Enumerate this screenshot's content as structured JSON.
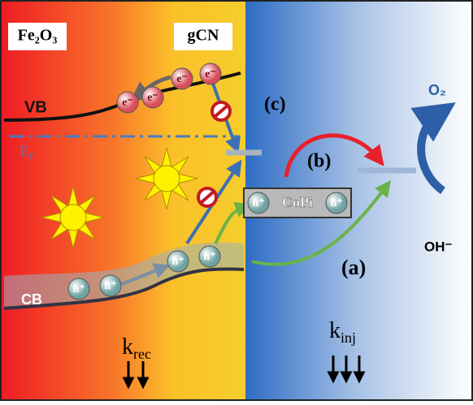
{
  "labels": {
    "left_material": "Fe₂O₃",
    "right_material": "gCN",
    "vb": "VB",
    "cb": "CB",
    "fermi": {
      "main": "E",
      "sub": "F"
    },
    "path_c": "(c)",
    "path_b": "(b)",
    "path_a": "(a)",
    "cocatalyst": "CoPi",
    "product": "O₂",
    "reactant": "OH⁻",
    "k_rec": {
      "main": "k",
      "sub": "rec"
    },
    "k_inj": {
      "main": "k",
      "sub": "inj"
    }
  },
  "electrons": [
    "e⁻",
    "e⁻",
    "e⁻",
    "e⁻"
  ],
  "holes": [
    "h⁺",
    "h⁺",
    "h⁺",
    "h⁺"
  ],
  "copi_holes": [
    "h⁺",
    "h⁺"
  ]
}
